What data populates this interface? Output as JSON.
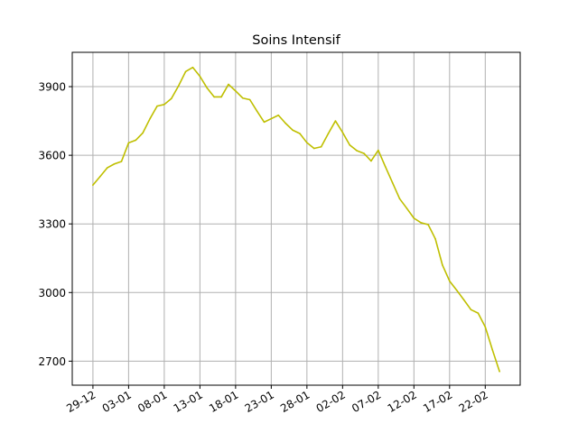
{
  "chart_data": {
    "type": "line",
    "title": "Soins Intensif",
    "xlabel": "",
    "ylabel": "",
    "color": "#bfbf00",
    "grid": true,
    "legend": "none",
    "x_ticks": [
      "29-12",
      "03-01",
      "08-01",
      "13-01",
      "18-01",
      "23-01",
      "28-01",
      "02-02",
      "07-02",
      "12-02",
      "17-02",
      "22-02"
    ],
    "y_ticks": [
      2700,
      3000,
      3300,
      3600,
      3900
    ],
    "ylim": [
      2595,
      4050
    ],
    "x": [
      "2020-12-29",
      "2020-12-30",
      "2020-12-31",
      "2021-01-01",
      "2021-01-02",
      "2021-01-03",
      "2021-01-04",
      "2021-01-05",
      "2021-01-06",
      "2021-01-07",
      "2021-01-08",
      "2021-01-09",
      "2021-01-10",
      "2021-01-11",
      "2021-01-12",
      "2021-01-13",
      "2021-01-14",
      "2021-01-15",
      "2021-01-16",
      "2021-01-17",
      "2021-01-18",
      "2021-01-19",
      "2021-01-20",
      "2021-01-21",
      "2021-01-22",
      "2021-01-23",
      "2021-01-24",
      "2021-01-25",
      "2021-01-26",
      "2021-01-27",
      "2021-01-28",
      "2021-01-29",
      "2021-01-30",
      "2021-01-31",
      "2021-02-01",
      "2021-02-02",
      "2021-02-03",
      "2021-02-04",
      "2021-02-05",
      "2021-02-06",
      "2021-02-07",
      "2021-02-08",
      "2021-02-09",
      "2021-02-10",
      "2021-02-11",
      "2021-02-12",
      "2021-02-13",
      "2021-02-14",
      "2021-02-15",
      "2021-02-16",
      "2021-02-17",
      "2021-02-18",
      "2021-02-19",
      "2021-02-20",
      "2021-02-21",
      "2021-02-22",
      "2021-02-23",
      "2021-02-24"
    ],
    "values": [
      3470,
      3507,
      3545,
      3562,
      3573,
      3654,
      3666,
      3698,
      3760,
      3815,
      3822,
      3848,
      3903,
      3966,
      3984,
      3945,
      3894,
      3855,
      3855,
      3910,
      3881,
      3850,
      3843,
      3793,
      3745,
      3760,
      3775,
      3740,
      3710,
      3695,
      3655,
      3630,
      3637,
      3695,
      3750,
      3700,
      3645,
      3620,
      3608,
      3575,
      3622,
      3550,
      3480,
      3410,
      3368,
      3325,
      3305,
      3297,
      3235,
      3120,
      3050,
      3010,
      2968,
      2925,
      2910,
      2850,
      2750,
      2655
    ]
  }
}
